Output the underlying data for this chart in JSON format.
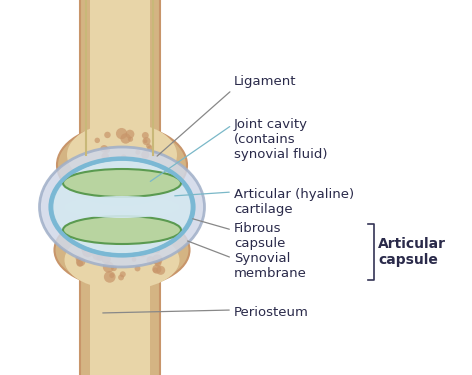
{
  "bg_color": "#ffffff",
  "bone_color": "#d4b483",
  "bone_texture_color": "#c8956a",
  "bone_inner_color": "#e8d5a8",
  "periosteum_color": "#e8d5a8",
  "cartilage_color": "#b8d4a0",
  "joint_cavity_color": "#d4e8f0",
  "fibrous_capsule_color": "#b0c8e0",
  "synovial_membrane_color": "#7ab8d4",
  "ligament_color": "#d0d8e8",
  "label_color": "#2a2a4a",
  "line_color": "#888888",
  "labels": {
    "ligament": "Ligament",
    "joint_cavity": "Joint cavity\n(contains\nsynovial fluid)",
    "articular_cartilage": "Articular (hyaline)\ncartilage",
    "fibrous_capsule": "Fibrous\ncapsule",
    "synovial_membrane": "Synovial\nmembrane",
    "periosteum": "Periosteum",
    "articular_capsule": "Articular\ncapsule"
  }
}
